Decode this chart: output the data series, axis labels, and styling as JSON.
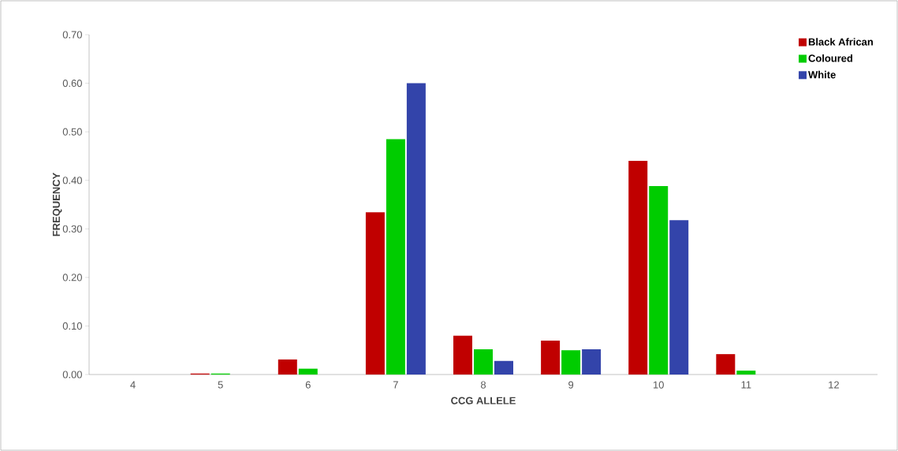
{
  "chart_data": {
    "type": "bar",
    "xlabel": "CCG ALLELE",
    "ylabel": "FREQUENCY",
    "categories": [
      "4",
      "5",
      "6",
      "7",
      "8",
      "9",
      "10",
      "11",
      "12"
    ],
    "series": [
      {
        "name": "Black African",
        "color": "#c00000",
        "values": [
          0,
          0.002,
          0.031,
          0.334,
          0.08,
          0.07,
          0.44,
          0.042,
          0
        ]
      },
      {
        "name": "Coloured",
        "color": "#00cc00",
        "values": [
          0,
          0.002,
          0.012,
          0.485,
          0.052,
          0.05,
          0.388,
          0.008,
          0
        ]
      },
      {
        "name": "White",
        "color": "#3344aa",
        "values": [
          0,
          0,
          0,
          0.6,
          0.028,
          0.052,
          0.318,
          0,
          0
        ]
      }
    ],
    "ylim": [
      0,
      0.7
    ],
    "yticks": [
      {
        "value": 0,
        "label": "0.00"
      },
      {
        "value": 0.1,
        "label": "0.10"
      },
      {
        "value": 0.2,
        "label": "0.20"
      },
      {
        "value": 0.3,
        "label": "0.30"
      },
      {
        "value": 0.4,
        "label": "0.40"
      },
      {
        "value": 0.5,
        "label": "0.50"
      },
      {
        "value": 0.6,
        "label": "0.60"
      },
      {
        "value": 0.7,
        "label": "0.70"
      }
    ],
    "legend": "top right",
    "grid": false
  }
}
